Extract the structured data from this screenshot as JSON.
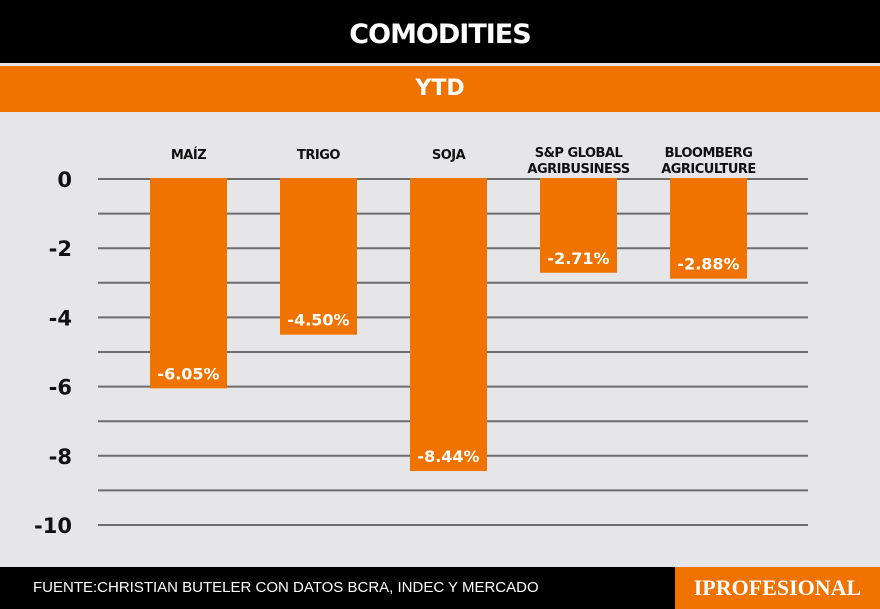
{
  "header": {
    "title": "COMODITIES",
    "subtitle": "YTD"
  },
  "footer": {
    "source": "FUENTE:CHRISTIAN BUTELER CON DATOS BCRA, INDEC Y MERCADO",
    "logo": "IPROFESIONAL"
  },
  "chart_data": {
    "type": "bar",
    "title": "COMODITIES",
    "subtitle": "YTD",
    "categories": [
      [
        "MAÍZ"
      ],
      [
        "TRIGO"
      ],
      [
        "SOJA"
      ],
      [
        "S&P GLOBAL",
        "AGRIBUSINESS"
      ],
      [
        "BLOOMBERG",
        "AGRICULTURE"
      ]
    ],
    "values": [
      -6.05,
      -4.5,
      -8.44,
      -2.71,
      -2.88
    ],
    "labels": [
      "-6.05%",
      "-4.50%",
      "-8.44%",
      "-2.71%",
      "-2.88%"
    ],
    "yticks": [
      0,
      -2,
      -4,
      -6,
      -8,
      -10
    ],
    "ylim": [
      -10,
      0
    ],
    "grid": true,
    "bar_color": "#f07300"
  }
}
